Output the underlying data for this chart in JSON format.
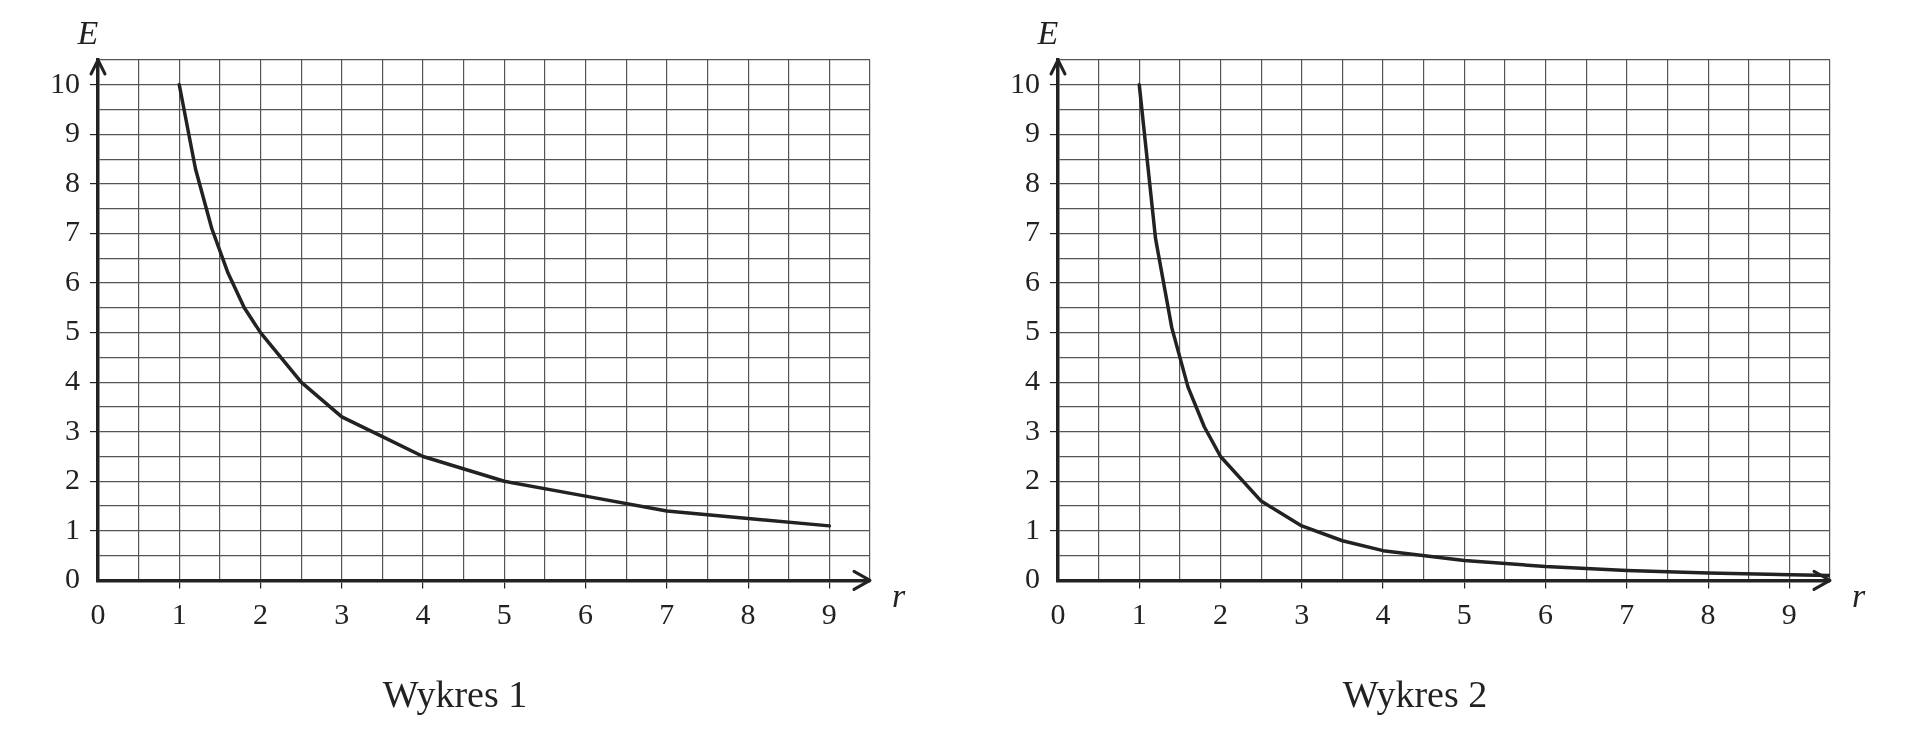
{
  "chart_data": [
    {
      "type": "line",
      "title": "Wykres 1",
      "xlabel": "r",
      "ylabel": "E",
      "x": [
        1,
        1.2,
        1.4,
        1.6,
        1.8,
        2,
        2.5,
        3,
        3.5,
        4,
        5,
        6,
        7,
        8,
        9
      ],
      "series": [
        {
          "color": "#222222",
          "values": [
            10,
            8.3,
            7.1,
            6.2,
            5.5,
            5,
            4,
            3.3,
            2.9,
            2.5,
            2,
            1.7,
            1.4,
            1.25,
            1.1
          ]
        }
      ],
      "xlim": [
        0,
        9.5
      ],
      "ylim": [
        0,
        10.5
      ],
      "xticks": [
        0,
        {
          "value": 0.5,
          "label": null
        },
        1,
        {
          "value": 1.5,
          "label": null
        },
        2,
        {
          "value": 2.5,
          "label": null
        },
        3,
        {
          "value": 3.5,
          "label": null
        },
        4,
        {
          "value": 4.5,
          "label": null
        },
        5,
        {
          "value": 5.5,
          "label": null
        },
        6,
        {
          "value": 6.5,
          "label": null
        },
        7,
        {
          "value": 7.5,
          "label": null
        },
        8,
        {
          "value": 8.5,
          "label": null
        },
        9,
        {
          "value": 9.5,
          "label": null
        }
      ],
      "yticks": [
        0,
        {
          "value": 0.5,
          "label": null
        },
        1,
        {
          "value": 1.5,
          "label": null
        },
        2,
        {
          "value": 2.5,
          "label": null
        },
        3,
        {
          "value": 3.5,
          "label": null
        },
        4,
        {
          "value": 4.5,
          "label": null
        },
        5,
        {
          "value": 5.5,
          "label": null
        },
        6,
        {
          "value": 6.5,
          "label": null
        },
        7,
        {
          "value": 7.5,
          "label": null
        },
        8,
        {
          "value": 8.5,
          "label": null
        },
        9,
        {
          "value": 9.5,
          "label": null
        },
        10,
        {
          "value": 10.5,
          "label": null
        }
      ],
      "grid": true,
      "legend": false,
      "marker": "none",
      "line_style": "solid"
    },
    {
      "type": "line",
      "title": "Wykres 2",
      "xlabel": "r",
      "ylabel": "E",
      "x": [
        1,
        1.2,
        1.4,
        1.6,
        1.8,
        2,
        2.5,
        3,
        3.5,
        4,
        5,
        6,
        7,
        8,
        9.5
      ],
      "series": [
        {
          "color": "#222222",
          "values": [
            10,
            6.9,
            5.1,
            3.9,
            3.1,
            2.5,
            1.6,
            1.1,
            0.8,
            0.6,
            0.4,
            0.28,
            0.2,
            0.15,
            0.1
          ]
        }
      ],
      "xlim": [
        0,
        9.5
      ],
      "ylim": [
        0,
        10.5
      ],
      "xticks": [
        0,
        {
          "value": 0.5,
          "label": null
        },
        1,
        {
          "value": 1.5,
          "label": null
        },
        2,
        {
          "value": 2.5,
          "label": null
        },
        3,
        {
          "value": 3.5,
          "label": null
        },
        4,
        {
          "value": 4.5,
          "label": null
        },
        5,
        {
          "value": 5.5,
          "label": null
        },
        6,
        {
          "value": 6.5,
          "label": null
        },
        7,
        {
          "value": 7.5,
          "label": null
        },
        8,
        {
          "value": 8.5,
          "label": null
        },
        9,
        {
          "value": 9.5,
          "label": null
        }
      ],
      "yticks": [
        0,
        {
          "value": 0.5,
          "label": null
        },
        1,
        {
          "value": 1.5,
          "label": null
        },
        2,
        {
          "value": 2.5,
          "label": null
        },
        3,
        {
          "value": 3.5,
          "label": null
        },
        4,
        {
          "value": 4.5,
          "label": null
        },
        5,
        {
          "value": 5.5,
          "label": null
        },
        6,
        {
          "value": 6.5,
          "label": null
        },
        7,
        {
          "value": 7.5,
          "label": null
        },
        8,
        {
          "value": 8.5,
          "label": null
        },
        9,
        {
          "value": 9.5,
          "label": null
        },
        10,
        {
          "value": 10.5,
          "label": null
        }
      ],
      "grid": true,
      "legend": false,
      "marker": "none",
      "line_style": "solid"
    }
  ]
}
